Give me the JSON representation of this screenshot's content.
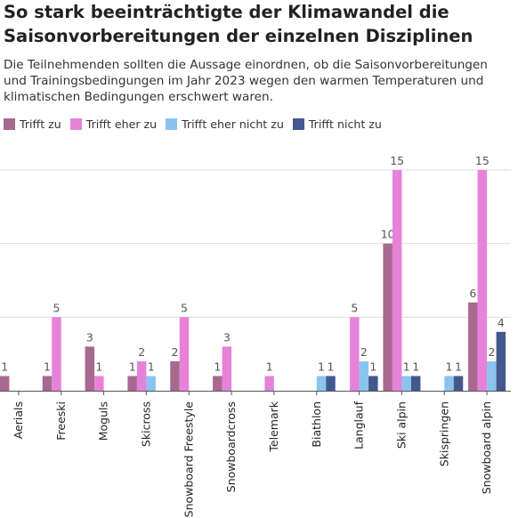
{
  "title": "So stark beeinträchtigte der Klimawandel die Saisonvorbereitungen der einzelnen Disziplinen",
  "subtitle": "Die Teilnehmenden sollten die Aussage einordnen, ob die Saisonvorbereitungen und Trainingsbedingungen im Jahr 2023 wegen den warmen Temperaturen und klimatischen Bedingungen erschwert waren.",
  "chart_data": {
    "type": "bar",
    "categories": [
      "Aerials",
      "Freeski",
      "Moguls",
      "Skicross",
      "Snowboard Freestyle",
      "Snowboardcross",
      "Telemark",
      "Biathlon",
      "Langlauf",
      "Ski alpin",
      "Skispringen",
      "Snowboard alpin"
    ],
    "series": [
      {
        "name": "Trifft zu",
        "color": "#a8698f",
        "values": [
          1,
          1,
          3,
          1,
          2,
          1,
          0,
          0,
          0,
          10,
          0,
          6
        ]
      },
      {
        "name": "Trifft eher zu",
        "color": "#e782d9",
        "values": [
          0,
          5,
          1,
          2,
          5,
          3,
          1,
          0,
          5,
          15,
          0,
          15
        ]
      },
      {
        "name": "Trifft eher nicht zu",
        "color": "#8ac4ee",
        "values": [
          0,
          0,
          0,
          1,
          0,
          0,
          0,
          1,
          2,
          1,
          1,
          2
        ]
      },
      {
        "name": "Trifft nicht zu",
        "color": "#43598e",
        "values": [
          0,
          0,
          0,
          0,
          0,
          0,
          0,
          1,
          1,
          1,
          1,
          4
        ]
      }
    ],
    "ylim": [
      0,
      15
    ],
    "gridlines": [
      5,
      10,
      15
    ],
    "grid": true,
    "legend": "top-left",
    "xlabel": "",
    "ylabel": ""
  }
}
